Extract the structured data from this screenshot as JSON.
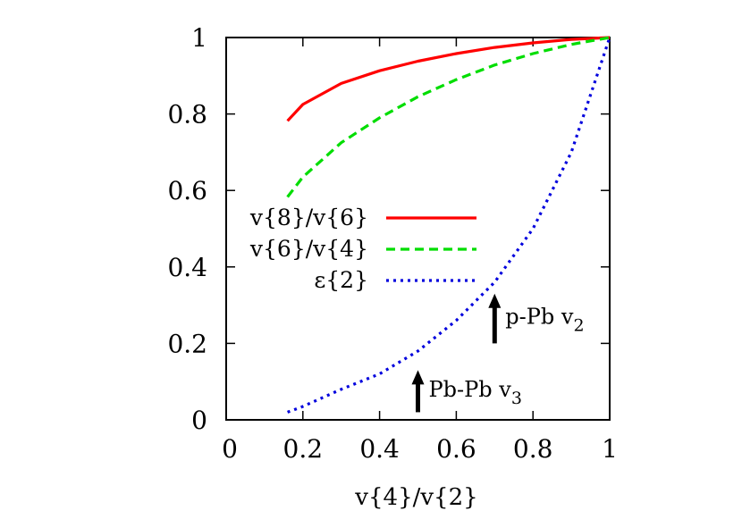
{
  "chart_data": {
    "type": "line",
    "title": "",
    "xlabel": "v{4}/v{2}",
    "ylabel": "",
    "xlim": [
      0,
      1
    ],
    "ylim": [
      0,
      1
    ],
    "x_ticks": [
      "0",
      "0.2",
      "0.4",
      "0.6",
      "0.8",
      "1"
    ],
    "y_ticks": [
      "0",
      "0.2",
      "0.4",
      "0.6",
      "0.8",
      "1"
    ],
    "legend_position": "center",
    "series": [
      {
        "name": "v{8}/v{6}",
        "color": "#ff0000",
        "dash": "solid",
        "x": [
          0.16,
          0.2,
          0.3,
          0.4,
          0.5,
          0.6,
          0.7,
          0.8,
          0.9,
          1.0
        ],
        "y": [
          0.782,
          0.825,
          0.88,
          0.913,
          0.938,
          0.958,
          0.974,
          0.986,
          0.995,
          1.0
        ]
      },
      {
        "name": "v{6}/v{4}",
        "color": "#00dd00",
        "dash": "dashed",
        "x": [
          0.16,
          0.2,
          0.3,
          0.4,
          0.5,
          0.6,
          0.7,
          0.8,
          0.9,
          1.0
        ],
        "y": [
          0.583,
          0.635,
          0.725,
          0.79,
          0.845,
          0.89,
          0.928,
          0.958,
          0.982,
          1.0
        ]
      },
      {
        "name": "ε{2}",
        "color": "#0000dd",
        "dash": "dotted",
        "x": [
          0.16,
          0.2,
          0.3,
          0.4,
          0.5,
          0.6,
          0.7,
          0.8,
          0.9,
          1.0
        ],
        "y": [
          0.02,
          0.035,
          0.08,
          0.12,
          0.18,
          0.26,
          0.36,
          0.5,
          0.7,
          1.0
        ]
      }
    ],
    "annotations": [
      {
        "label": "p-Pb v",
        "subscript": "2",
        "x": 0.7,
        "arrow_from_y": 0.2,
        "arrow_to_y": 0.33
      },
      {
        "label": "Pb-Pb v",
        "subscript": "3",
        "x": 0.5,
        "arrow_from_y": 0.02,
        "arrow_to_y": 0.13
      }
    ]
  }
}
